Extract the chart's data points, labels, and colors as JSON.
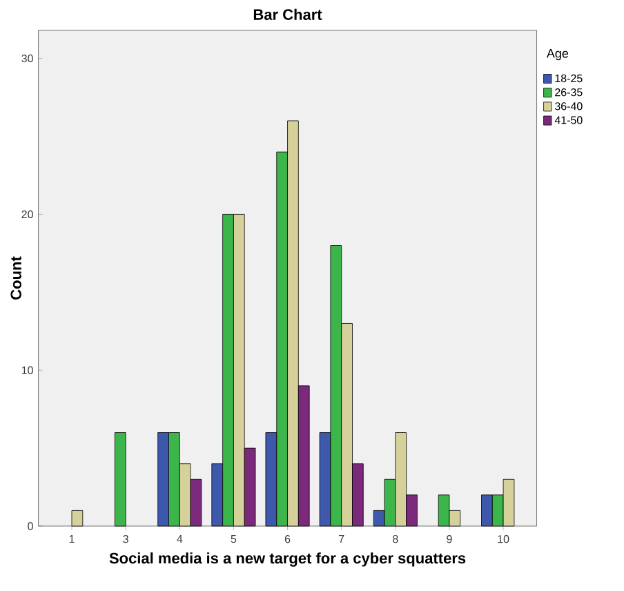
{
  "chart_data": {
    "type": "bar",
    "title": "Bar Chart",
    "xlabel": "Social media is a new target for a cyber squatters",
    "ylabel": "Count",
    "legend_title": "Age",
    "legend": "top right",
    "grid": false,
    "categories": [
      "1",
      "3",
      "4",
      "5",
      "6",
      "7",
      "8",
      "9",
      "10"
    ],
    "ylim": [
      0,
      31.8
    ],
    "yticks": [
      0,
      10,
      20,
      30
    ],
    "series": [
      {
        "name": "18-25",
        "color": "#3e58ac",
        "values": [
          null,
          null,
          6,
          4,
          6,
          6,
          1,
          null,
          2
        ]
      },
      {
        "name": "26-35",
        "color": "#3cb54a",
        "values": [
          null,
          6,
          6,
          20,
          24,
          18,
          3,
          2,
          2
        ]
      },
      {
        "name": "36-40",
        "color": "#d6d19a",
        "values": [
          1,
          null,
          4,
          20,
          26,
          13,
          6,
          1,
          3
        ]
      },
      {
        "name": "41-50",
        "color": "#7b2a7b",
        "values": [
          null,
          null,
          3,
          5,
          9,
          4,
          2,
          null,
          null
        ]
      }
    ]
  }
}
